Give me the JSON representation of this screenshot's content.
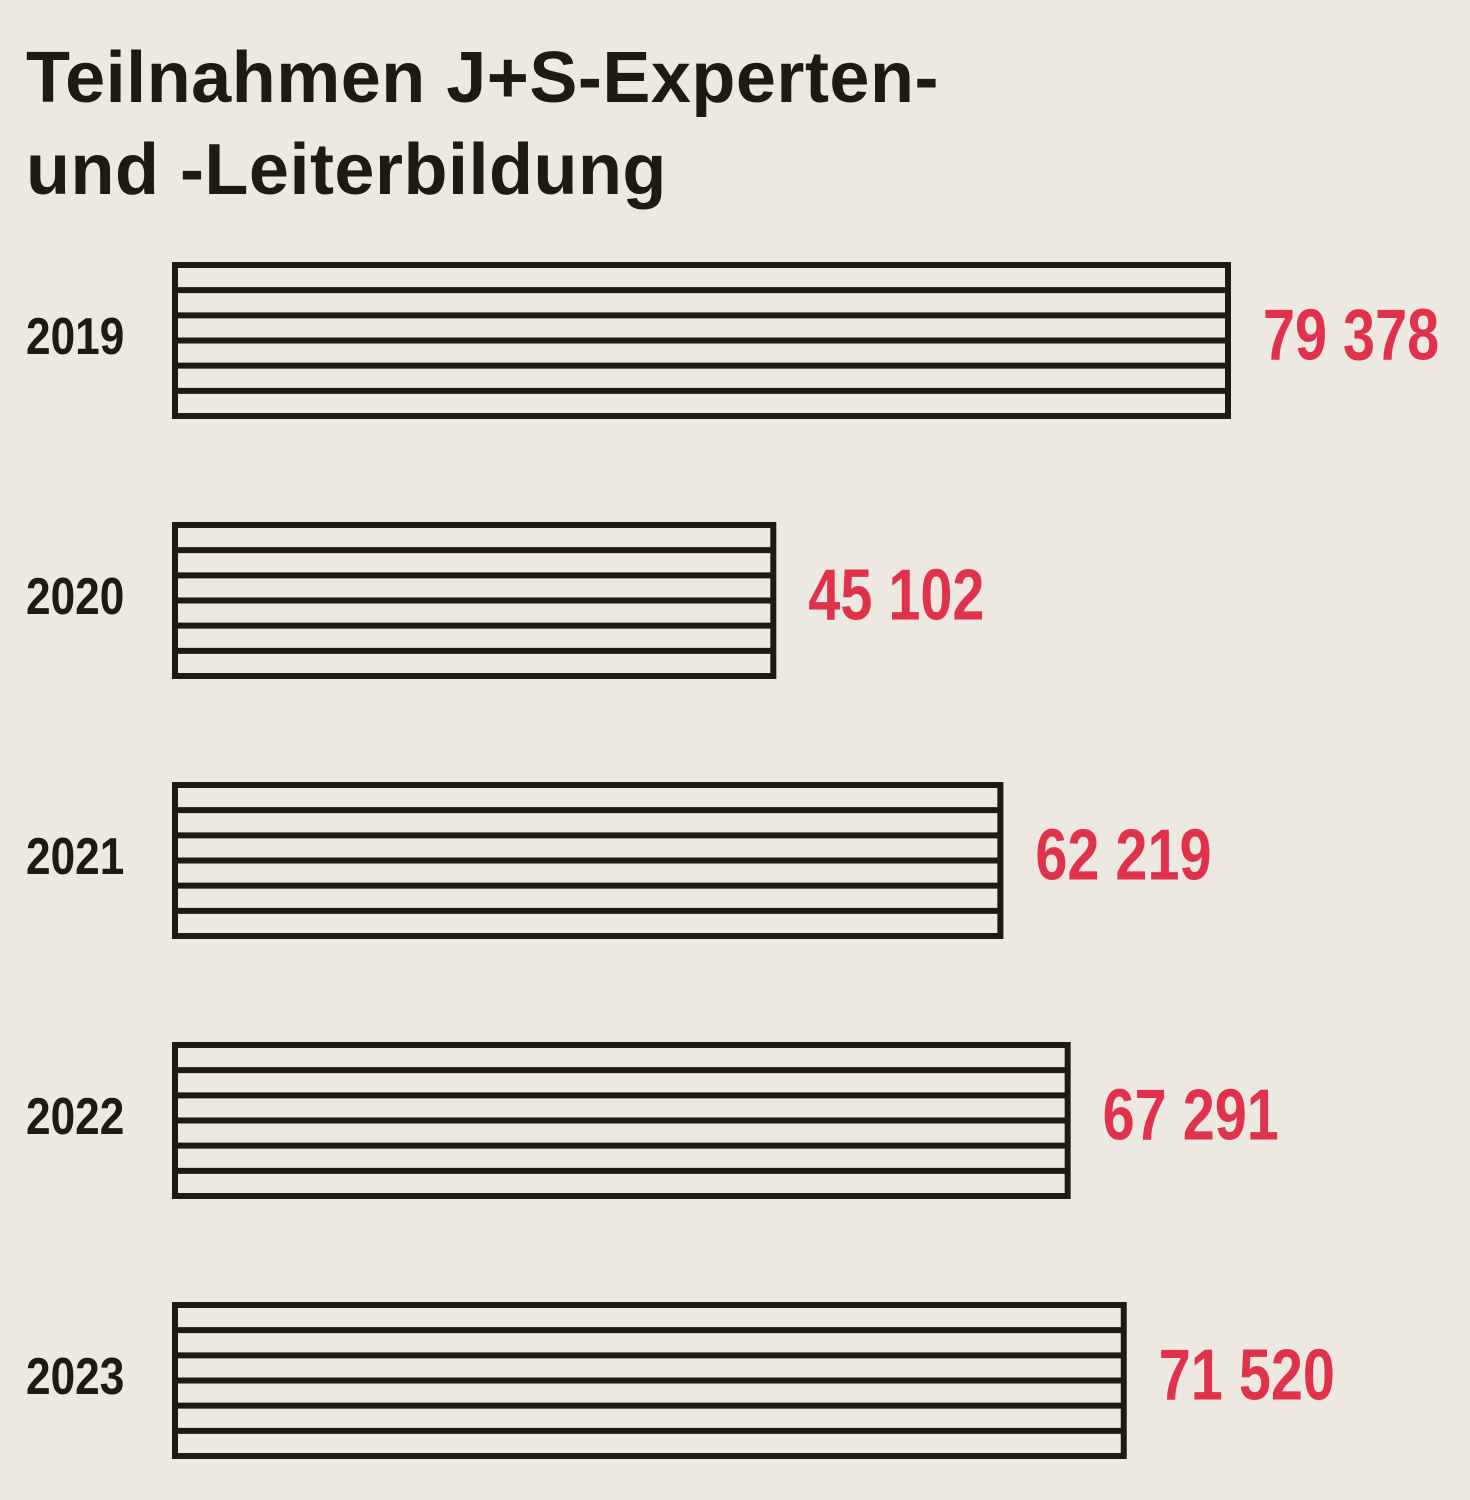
{
  "chart_data": {
    "type": "hbar",
    "title": "Teilnahmen J+S-Experten-\nund -Leiterbildung",
    "categories": [
      "2019",
      "2020",
      "2021",
      "2022",
      "2023"
    ],
    "values": [
      79378,
      45102,
      62219,
      67291,
      71520
    ],
    "value_labels": [
      "79 378",
      "45 102",
      "62 219",
      "67 291",
      "71 520"
    ],
    "color": "#1c1a12",
    "label_color": "#e0324b"
  }
}
